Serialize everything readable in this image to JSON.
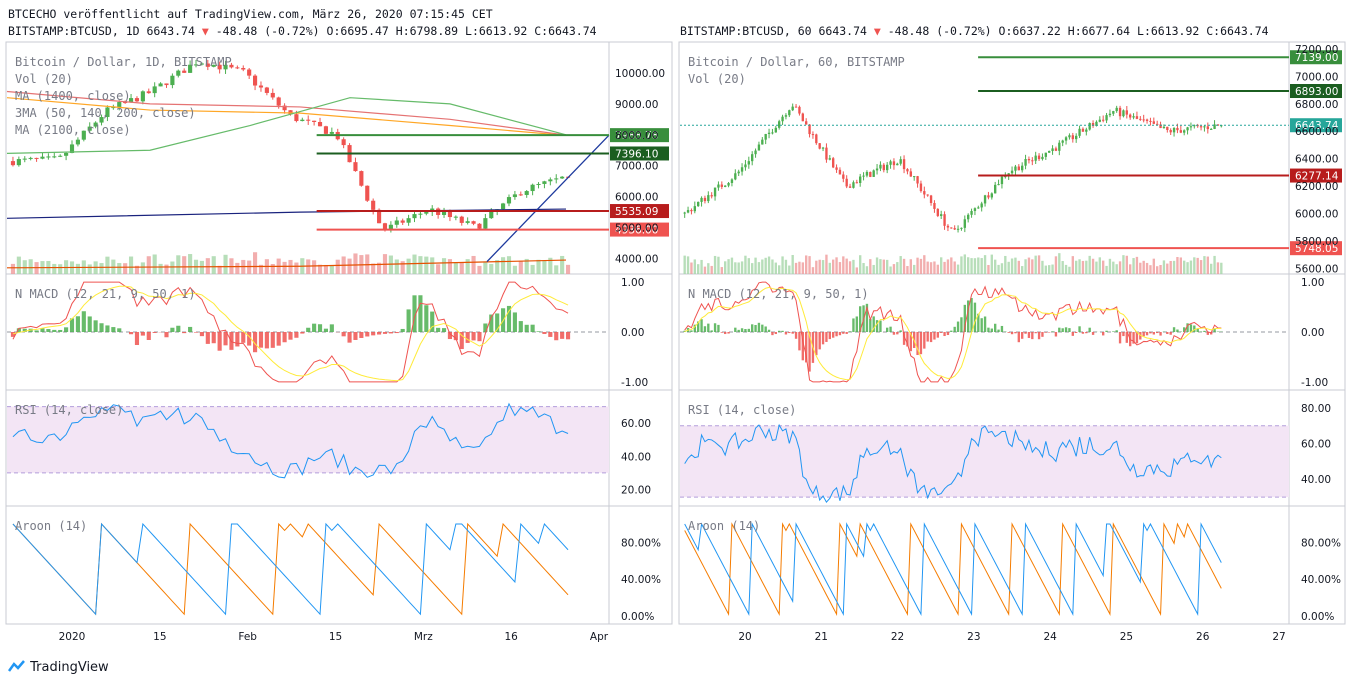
{
  "header": {
    "line1": "BTCECHO veröffentlicht auf TradingView.com, März 26, 2020 07:15:45 CET",
    "left": {
      "symbol": "BITSTAMP:BTCUSD, 1D 6643.74",
      "change": "-48.48 (-0.72%)",
      "ohlc": "O:6695.47 H:6798.89 L:6613.92 C:6643.74"
    },
    "right": {
      "symbol": "BITSTAMP:BTCUSD, 60 6643.74",
      "change": "-48.48 (-0.72%)",
      "ohlc": "O:6637.22 H:6677.64 L:6613.92 C:6643.74"
    }
  },
  "footer": {
    "brand": "TradingView"
  },
  "colors": {
    "up": "#26a69a",
    "candle_up": "#4caf50",
    "down": "#ef5350",
    "macd_line": "#ef5350",
    "signal_line": "#ffeb3b",
    "rsi_line": "#2196f3",
    "rsi_band": "#f3e5f5",
    "aroon_up": "#f57c00",
    "aroon_down": "#2196f3",
    "support_green": "#388e3c",
    "resistance_red": "#c62828"
  },
  "left_chart": {
    "legend": [
      "Bitcoin / Dollar, 1D, BITSTAMP",
      "Vol (20)",
      "MA (1400, close)",
      "3MA (50, 140, 200, close)",
      "MA (2100, close)"
    ],
    "price_ticks": [
      "10000.00",
      "9000.00",
      "8000.00",
      "7000.00",
      "6000.00",
      "5000.00",
      "4000.00"
    ],
    "levels": [
      {
        "value": "7988.78",
        "color": "#388e3c"
      },
      {
        "value": "7396.10",
        "color": "#1b5e20"
      },
      {
        "value": "5535.09",
        "color": "#b71c1c"
      },
      {
        "value": "4936.00",
        "color": "#ef5350"
      }
    ],
    "macd_label": "N MACD (12, 21, 9, 50, 1)",
    "macd_ticks": [
      "1.00",
      "0.00",
      "-1.00"
    ],
    "rsi_label": "RSI (14, close)",
    "rsi_ticks": [
      "60.00",
      "40.00",
      "20.00"
    ],
    "aroon_label": "Aroon (14)",
    "aroon_ticks": [
      "80.00%",
      "40.00%",
      "0.00%"
    ],
    "time_ticks": [
      "2020",
      "15",
      "Feb",
      "15",
      "Mrz",
      "16",
      "Apr"
    ]
  },
  "right_chart": {
    "legend": [
      "Bitcoin / Dollar, 60, BITSTAMP",
      "Vol (20)"
    ],
    "price_ticks": [
      "7200.00",
      "7000.00",
      "6800.00",
      "6600.00",
      "6400.00",
      "6200.00",
      "6000.00",
      "5800.00",
      "5600.00"
    ],
    "levels": [
      {
        "value": "7139.00",
        "color": "#388e3c"
      },
      {
        "value": "6893.00",
        "color": "#1b5e20"
      },
      {
        "value": "6643.74",
        "color": "#26a69a"
      },
      {
        "value": "6277.14",
        "color": "#b71c1c"
      },
      {
        "value": "5748.05",
        "color": "#ef5350"
      }
    ],
    "macd_label": "N MACD (12, 21, 9, 50, 1)",
    "macd_ticks": [
      "1.00",
      "0.00",
      "-1.00"
    ],
    "rsi_label": "RSI (14, close)",
    "rsi_ticks": [
      "80.00",
      "60.00",
      "40.00"
    ],
    "aroon_label": "Aroon (14)",
    "aroon_ticks": [
      "80.00%",
      "40.00%",
      "0.00%"
    ],
    "time_ticks": [
      "20",
      "21",
      "22",
      "23",
      "24",
      "25",
      "26",
      "27"
    ]
  },
  "chart_data": [
    {
      "type": "candlestick",
      "symbol": "BITSTAMP:BTCUSD",
      "timeframe": "1D",
      "x": [
        "2019-12-18",
        "2020-01-01",
        "2020-01-15",
        "2020-02-01",
        "2020-02-13",
        "2020-02-15",
        "2020-03-01",
        "2020-03-08",
        "2020-03-12",
        "2020-03-13",
        "2020-03-16",
        "2020-03-20",
        "2020-03-26"
      ],
      "close": [
        7150,
        7200,
        8750,
        9400,
        10400,
        10000,
        8600,
        8000,
        4900,
        5600,
        5000,
        6200,
        6643.74
      ],
      "ylim": [
        3500,
        11000
      ],
      "horizontal_levels": [
        7988.78,
        7396.1,
        5535.09,
        4936.0
      ],
      "last": 6643.74
    },
    {
      "type": "candlestick",
      "symbol": "BITSTAMP:BTCUSD",
      "timeframe": "60",
      "x": [
        "2020-03-19 12:00",
        "2020-03-20 06:00",
        "2020-03-20 18:00",
        "2020-03-21 12:00",
        "2020-03-22 12:00",
        "2020-03-23 06:00",
        "2020-03-23 14:00",
        "2020-03-24 06:00",
        "2020-03-24 14:00",
        "2020-03-25 12:00",
        "2020-03-26 06:00"
      ],
      "close": [
        6000,
        6300,
        6800,
        6200,
        6400,
        5850,
        6300,
        6500,
        6750,
        6600,
        6643.74
      ],
      "ylim": [
        5550,
        7250
      ],
      "horizontal_levels": [
        7139.0,
        6893.0,
        6277.14,
        5748.05
      ],
      "last": 6643.74
    }
  ]
}
